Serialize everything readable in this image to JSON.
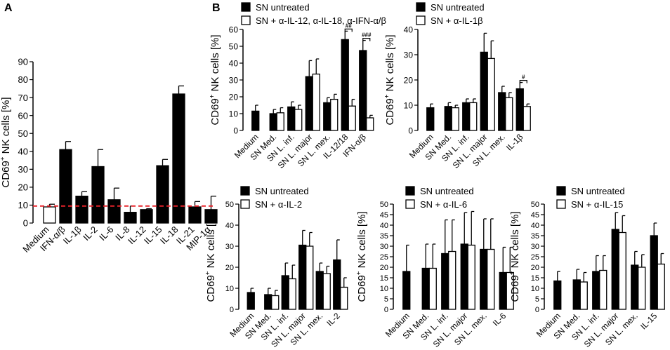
{
  "chart_data": [
    {
      "id": "A",
      "panel_label": "A",
      "type": "bar",
      "ylabel_main": "CD69",
      "ylabel_sup": "+",
      "ylabel_rest": " NK cells [%]",
      "ylim": [
        0,
        90
      ],
      "yticks": [
        "0",
        "10",
        "20",
        "30",
        "40",
        "50",
        "60",
        "70",
        "80",
        "90"
      ],
      "categories": [
        "Medium",
        "IFN-α/β",
        "IL-1β",
        "IL-2",
        "IL-6",
        "IL-8",
        "IL-12",
        "IL-15",
        "IL-18",
        "IL-21",
        "MIP-1α"
      ],
      "values": [
        9,
        41,
        15,
        31.5,
        13,
        6,
        7.5,
        32,
        72,
        9,
        7.5
      ],
      "errors": [
        1.5,
        4.5,
        2.5,
        9.5,
        6.5,
        3.5,
        0.5,
        3.5,
        4.5,
        3,
        7.5
      ],
      "fills": [
        "#ffffff",
        "#000000",
        "#000000",
        "#000000",
        "#000000",
        "#000000",
        "#000000",
        "#000000",
        "#000000",
        "#000000",
        "#000000"
      ],
      "reference_line": 9.5,
      "reference_color": "#e8232a"
    },
    {
      "id": "B1",
      "panel_label": "B",
      "type": "bar",
      "ylabel_main": "CD69",
      "ylabel_sup": "+",
      "ylabel_rest": " NK cells [%]",
      "ylim": [
        0,
        60
      ],
      "yticks": [
        "0",
        "10",
        "20",
        "30",
        "40",
        "50",
        "60"
      ],
      "legend": [
        "SN untreated",
        "SN + α-IL-12, α-IL-18, α-IFN-α/β"
      ],
      "categories": [
        "Medium",
        "SN Med.",
        "SN L. inf.",
        "SN L. major",
        "SN L. mex.",
        "IL-12/18",
        "IFN-α/β"
      ],
      "series": [
        {
          "name": "SN untreated",
          "values": [
            11.5,
            10,
            14,
            32,
            16.5,
            54,
            47.5
          ],
          "errors": [
            3.5,
            2.5,
            3,
            9.5,
            3,
            5,
            6
          ],
          "fill": "#000000"
        },
        {
          "name": "SN + α-IL-12, α-IL-18, α-IFN-α/β",
          "values": [
            null,
            10.5,
            12.5,
            33.5,
            18.5,
            14.5,
            7.5
          ],
          "errors": [
            null,
            3,
            2.5,
            9,
            3,
            4,
            1.5
          ],
          "fill": "#ffffff"
        }
      ],
      "significance": [
        {
          "category": "IL-12/18",
          "label": "##"
        },
        {
          "category": "IFN-α/β",
          "label": "###"
        }
      ]
    },
    {
      "id": "B2",
      "type": "bar",
      "ylabel_main": "CD69",
      "ylabel_sup": "+",
      "ylabel_rest": " NK cells [%]",
      "ylim": [
        0,
        40
      ],
      "yticks": [
        "0",
        "10",
        "20",
        "30",
        "40"
      ],
      "legend": [
        "SN untreated",
        "SN + α-IL-1β"
      ],
      "categories": [
        "Medium",
        "SN Med.",
        "SN L. inf.",
        "SN L. major",
        "SN L. mex.",
        "IL-1β"
      ],
      "series": [
        {
          "name": "SN untreated",
          "values": [
            9,
            9.5,
            11,
            31,
            15,
            16.5
          ],
          "errors": [
            1.5,
            1.5,
            1.5,
            7.5,
            2.5,
            2.5
          ],
          "fill": "#000000"
        },
        {
          "name": "SN + α-IL-1β",
          "values": [
            null,
            9,
            11,
            28.5,
            13,
            9.5
          ],
          "errors": [
            null,
            1,
            1.5,
            7,
            2,
            1
          ],
          "fill": "#ffffff"
        }
      ],
      "significance": [
        {
          "category": "IL-1β",
          "label": "#"
        }
      ]
    },
    {
      "id": "B3",
      "type": "bar",
      "ylabel_main": "CD69",
      "ylabel_sup": "+",
      "ylabel_rest": " NK cells [%]",
      "ylim": [
        0,
        50
      ],
      "yticks": [
        "0",
        "10",
        "20",
        "30",
        "40",
        "50"
      ],
      "legend": [
        "SN untreated",
        "SN + α-IL-2"
      ],
      "categories": [
        "Medium",
        "SN Med.",
        "SN L. inf.",
        "SN L. major",
        "SN L. mex.",
        "IL-2"
      ],
      "series": [
        {
          "name": "SN untreated",
          "values": [
            8,
            7,
            16,
            30.5,
            18,
            23.5
          ],
          "errors": [
            2,
            3,
            6,
            7,
            4,
            9.5
          ],
          "fill": "#000000"
        },
        {
          "name": "SN + α-IL-2",
          "values": [
            null,
            6.5,
            14.5,
            30,
            17,
            10.5
          ],
          "errors": [
            null,
            2.5,
            6.5,
            6.5,
            3.5,
            4.5
          ],
          "fill": "#ffffff"
        }
      ]
    },
    {
      "id": "B4",
      "type": "bar",
      "ylabel_main": "CD69",
      "ylabel_sup": "+",
      "ylabel_rest": " NK cells [%]",
      "ylim": [
        0,
        50
      ],
      "yticks": [
        "0",
        "5",
        "10",
        "15",
        "20",
        "25",
        "30",
        "35",
        "40",
        "45",
        "50"
      ],
      "legend": [
        "SN untreated",
        "SN + α-IL-6"
      ],
      "categories": [
        "Medium",
        "SN Med.",
        "SN L. inf.",
        "SN L. major",
        "SN L. mex.",
        "IL-6"
      ],
      "series": [
        {
          "name": "SN untreated",
          "values": [
            18,
            19.5,
            26.5,
            31,
            28.5,
            17.5
          ],
          "errors": [
            12.5,
            11.5,
            16,
            15,
            14.5,
            12
          ],
          "fill": "#000000"
        },
        {
          "name": "SN + α-IL-6",
          "values": [
            null,
            19.5,
            27.5,
            30.5,
            28.5,
            17.5
          ],
          "errors": [
            null,
            11.5,
            15,
            16,
            14.5,
            12
          ],
          "fill": "#ffffff"
        }
      ]
    },
    {
      "id": "B5",
      "type": "bar",
      "ylabel_main": "CD69",
      "ylabel_sup": "+",
      "ylabel_rest": " NK cells [%]",
      "ylim": [
        0,
        50
      ],
      "yticks": [
        "0",
        "5",
        "10",
        "15",
        "20",
        "25",
        "30",
        "35",
        "40",
        "45",
        "50"
      ],
      "legend": [
        "SN untreated",
        "SN + α-IL-15"
      ],
      "categories": [
        "Medium",
        "SN Med.",
        "SN L. inf.",
        "SN L. major",
        "SN L. mex.",
        "IL-15"
      ],
      "series": [
        {
          "name": "SN untreated",
          "values": [
            13.5,
            14,
            18,
            38,
            21,
            35
          ],
          "errors": [
            4.5,
            5,
            7.5,
            8,
            6.5,
            6
          ],
          "fill": "#000000"
        },
        {
          "name": "SN + α-IL-15",
          "values": [
            null,
            13,
            18.5,
            36.5,
            20,
            21.5
          ],
          "errors": [
            null,
            4.5,
            7,
            8,
            6,
            5
          ],
          "fill": "#ffffff"
        }
      ]
    }
  ]
}
